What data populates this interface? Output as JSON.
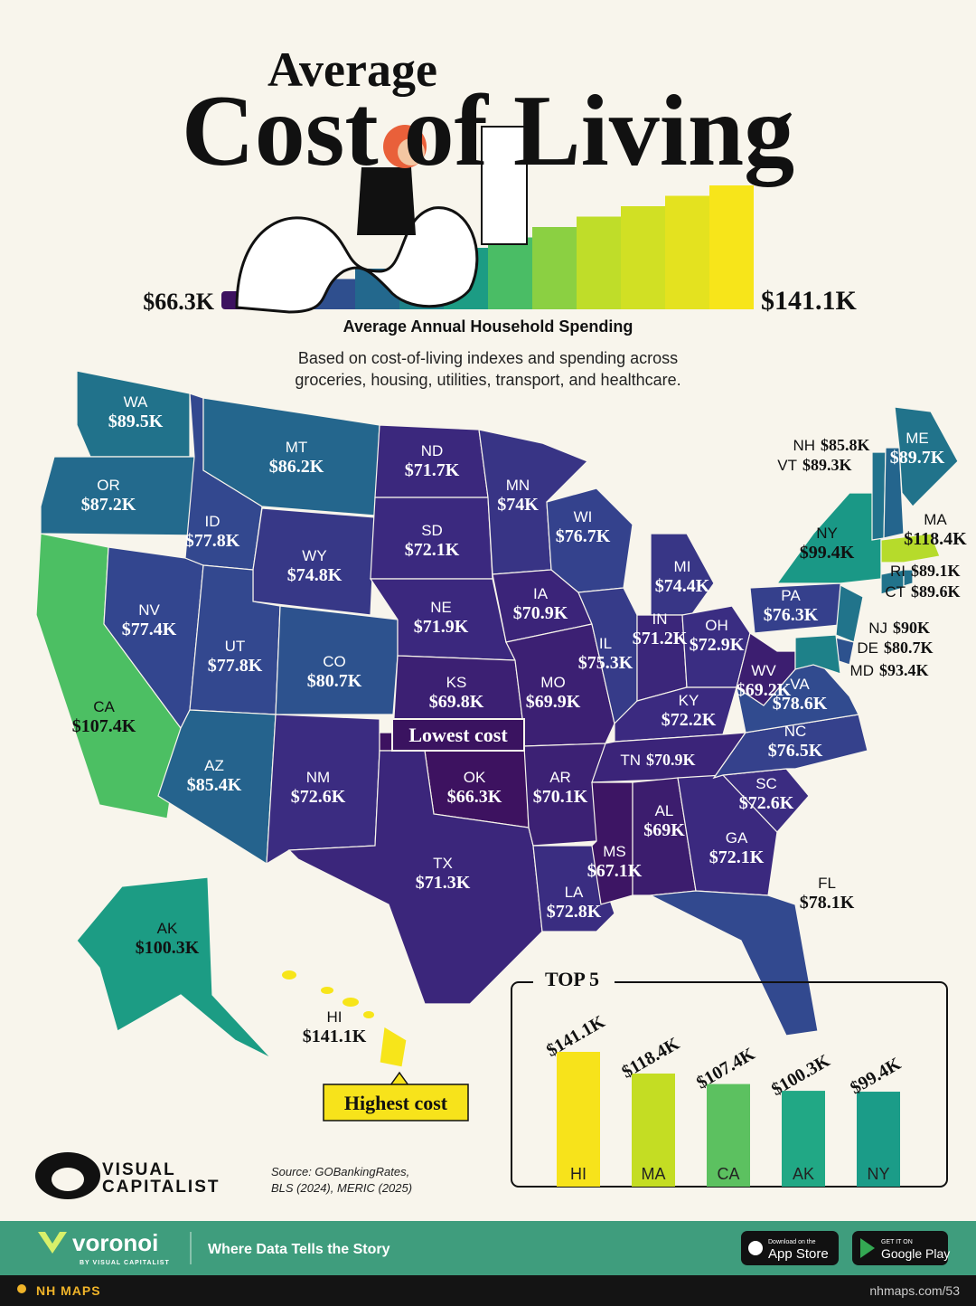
{
  "title_small": "Average",
  "title": "Cost of Living",
  "legend": {
    "min": {
      "value": 66.3,
      "label": "$66.3K"
    },
    "max": {
      "value": 141.1,
      "label": "$141.1K"
    },
    "title": "Average Annual Household Spending"
  },
  "subtitle": [
    "Based on cost-of-living indexes and spending across",
    "groceries, housing, utilities, transport, and healthcare."
  ],
  "map": {
    "states": [
      {
        "name": "WA",
        "value": 89.5,
        "value_label": "$89.5K"
      },
      {
        "name": "OR",
        "value": 87.2,
        "value_label": "$87.2K"
      },
      {
        "name": "CA",
        "value": 107.4,
        "value_label": "$107.4K"
      },
      {
        "name": "NV",
        "value": 77.4,
        "value_label": "$77.4K"
      },
      {
        "name": "ID",
        "value": 77.8,
        "value_label": "$77.8K"
      },
      {
        "name": "MT",
        "value": 86.2,
        "value_label": "$86.2K"
      },
      {
        "name": "WY",
        "value": 74.8,
        "value_label": "$74.8K"
      },
      {
        "name": "UT",
        "value": 77.8,
        "value_label": "$77.8K"
      },
      {
        "name": "CO",
        "value": 80.7,
        "value_label": "$80.7K"
      },
      {
        "name": "AZ",
        "value": 85.4,
        "value_label": "$85.4K"
      },
      {
        "name": "NM",
        "value": 72.6,
        "value_label": "$72.6K"
      },
      {
        "name": "ND",
        "value": 71.7,
        "value_label": "$71.7K"
      },
      {
        "name": "SD",
        "value": 72.1,
        "value_label": "$72.1K"
      },
      {
        "name": "NE",
        "value": 71.9,
        "value_label": "$71.9K"
      },
      {
        "name": "KS",
        "value": 69.8,
        "value_label": "$69.8K"
      },
      {
        "name": "OK",
        "value": 66.3,
        "value_label": "$66.3K"
      },
      {
        "name": "TX",
        "value": 71.3,
        "value_label": "$71.3K"
      },
      {
        "name": "MN",
        "value": 74,
        "value_label": "$74K"
      },
      {
        "name": "IA",
        "value": 70.9,
        "value_label": "$70.9K"
      },
      {
        "name": "MO",
        "value": 69.9,
        "value_label": "$69.9K"
      },
      {
        "name": "AR",
        "value": 70.1,
        "value_label": "$70.1K"
      },
      {
        "name": "LA",
        "value": 72.8,
        "value_label": "$72.8K"
      },
      {
        "name": "WI",
        "value": 76.7,
        "value_label": "$76.7K"
      },
      {
        "name": "IL",
        "value": 75.3,
        "value_label": "$75.3K"
      },
      {
        "name": "MI",
        "value": 74.4,
        "value_label": "$74.4K"
      },
      {
        "name": "IN",
        "value": 71.2,
        "value_label": "$71.2K"
      },
      {
        "name": "OH",
        "value": 72.9,
        "value_label": "$72.9K"
      },
      {
        "name": "KY",
        "value": 72.2,
        "value_label": "$72.2K"
      },
      {
        "name": "TN",
        "value": 70.9,
        "value_label": "$70.9K"
      },
      {
        "name": "MS",
        "value": 67.1,
        "value_label": "$67.1K"
      },
      {
        "name": "AL",
        "value": 69,
        "value_label": "$69K"
      },
      {
        "name": "GA",
        "value": 72.1,
        "value_label": "$72.1K"
      },
      {
        "name": "FL",
        "value": 78.1,
        "value_label": "$78.1K"
      },
      {
        "name": "SC",
        "value": 72.6,
        "value_label": "$72.6K"
      },
      {
        "name": "NC",
        "value": 76.5,
        "value_label": "$76.5K"
      },
      {
        "name": "VA",
        "value": 78.6,
        "value_label": "$78.6K"
      },
      {
        "name": "WV",
        "value": 69.2,
        "value_label": "$69.2K"
      },
      {
        "name": "PA",
        "value": 76.3,
        "value_label": "$76.3K"
      },
      {
        "name": "NY",
        "value": 99.4,
        "value_label": "$99.4K"
      },
      {
        "name": "NJ",
        "value": 90,
        "value_label": "$90K"
      },
      {
        "name": "DE",
        "value": 80.7,
        "value_label": "$80.7K"
      },
      {
        "name": "MD",
        "value": 93.4,
        "value_label": "$93.4K"
      },
      {
        "name": "CT",
        "value": 89.6,
        "value_label": "$89.6K"
      },
      {
        "name": "RI",
        "value": 89.1,
        "value_label": "$89.1K"
      },
      {
        "name": "MA",
        "value": 118.4,
        "value_label": "$118.4K"
      },
      {
        "name": "VT",
        "value": 89.3,
        "value_label": "$89.3K"
      },
      {
        "name": "NH",
        "value": 85.8,
        "value_label": "$85.8K"
      },
      {
        "name": "ME",
        "value": 89.7,
        "value_label": "$89.7K"
      },
      {
        "name": "AK",
        "value": 100.3,
        "value_label": "$100.3K"
      },
      {
        "name": "HI",
        "value": 141.1,
        "value_label": "$141.1K"
      }
    ]
  },
  "annotations": {
    "lowest": "Lowest cost",
    "highest": "Highest cost"
  },
  "chart_data": {
    "type": "bar",
    "title": "TOP 5",
    "categories": [
      "HI",
      "MA",
      "CA",
      "AK",
      "NY"
    ],
    "values": [
      141.1,
      118.4,
      107.4,
      100.3,
      99.4
    ],
    "value_labels": [
      "$141.1K",
      "$118.4K",
      "$107.4K",
      "$100.3K",
      "$99.4K"
    ],
    "colors": [
      "#f7e31b",
      "#c4dd23",
      "#5cc160",
      "#21a885",
      "#1b9c88"
    ]
  },
  "brand": [
    "VISUAL",
    "CAPITALIST"
  ],
  "source": [
    "Source: GOBankingRates,",
    "BLS (2024), MERIC (2025)"
  ],
  "footer": {
    "logo": "voronoi",
    "logo_sub": "BY VISUAL CAPITALIST",
    "tagline": "Where Data Tells the Story",
    "app_store": {
      "small": "Download on the",
      "big": "App Store"
    },
    "google_play": {
      "small": "GET IT ON",
      "big": "Google Play"
    },
    "credit": "NH MAPS",
    "url": "nhmaps.com/53"
  }
}
